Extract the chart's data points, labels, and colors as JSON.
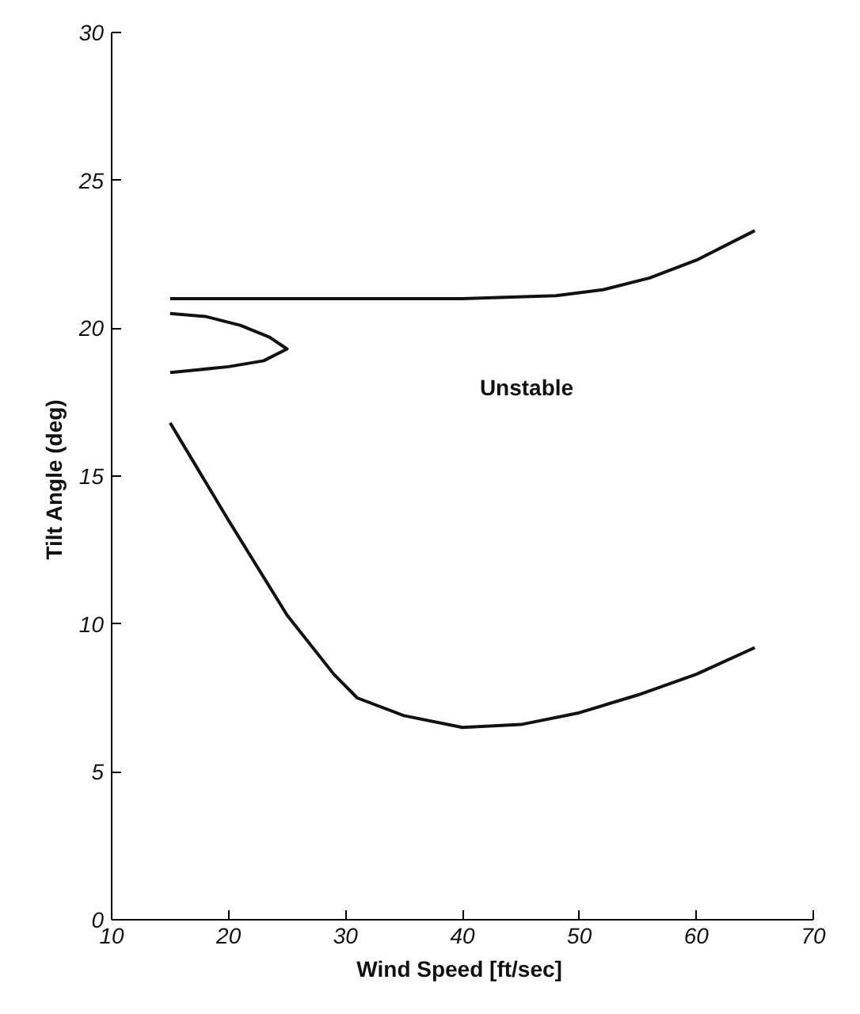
{
  "chart_data": {
    "type": "line",
    "xlabel": "Wind Speed  [ft/sec]",
    "ylabel": "Tilt Angle  (deg)",
    "xlim": [
      10,
      70
    ],
    "xticks": [
      10,
      20,
      30,
      40,
      50,
      60,
      70
    ],
    "ylim": [
      0,
      30
    ],
    "yticks": [
      0,
      5,
      10,
      15,
      20,
      25,
      30
    ],
    "grid": false,
    "marker": "none",
    "line_style": "solid",
    "annotations": [
      "Unstable"
    ],
    "series": [
      {
        "color": "#111111",
        "x": [
          15,
          20,
          30,
          40,
          48,
          52,
          56,
          60,
          65
        ],
        "values": [
          21,
          21,
          21,
          21,
          21.1,
          21.3,
          21.7,
          22.3,
          23.3
        ]
      },
      {
        "color": "#111111",
        "x": [
          15,
          18,
          21,
          23.5,
          25,
          23,
          20,
          15
        ],
        "values": [
          20.5,
          20.4,
          20.1,
          19.7,
          19.3,
          18.9,
          18.7,
          18.5
        ]
      },
      {
        "color": "#111111",
        "x": [
          15,
          20,
          25,
          29,
          31,
          35,
          40,
          45,
          50,
          55,
          60,
          65
        ],
        "values": [
          16.8,
          13.5,
          10.3,
          8.3,
          7.5,
          6.9,
          6.5,
          6.6,
          7,
          7.6,
          8.3,
          9.2
        ]
      }
    ]
  }
}
